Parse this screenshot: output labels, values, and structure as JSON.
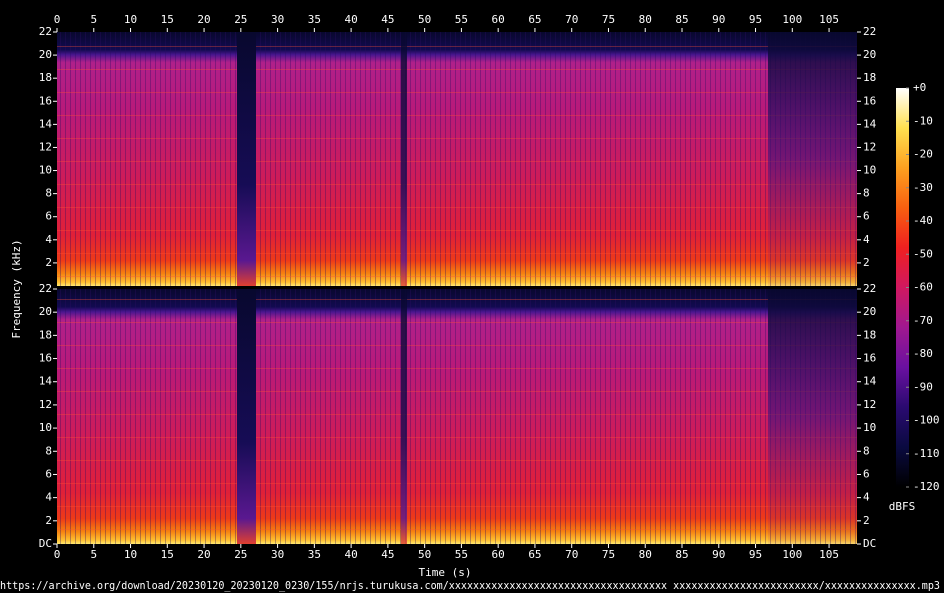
{
  "chart_data": {
    "type": "spectrogram",
    "xlabel": "Time (s)",
    "ylabel": "Frequency (kHz)",
    "xlim": [
      0,
      108.8
    ],
    "xticks": [
      0,
      5,
      10,
      15,
      20,
      25,
      30,
      35,
      40,
      45,
      50,
      55,
      60,
      65,
      70,
      75,
      80,
      85,
      90,
      95,
      100,
      105
    ],
    "panels": [
      {
        "ylim": [
          0,
          22
        ],
        "yticks": [
          2,
          4,
          6,
          8,
          10,
          12,
          14,
          16,
          18,
          20,
          22
        ]
      },
      {
        "ylim": [
          0,
          22
        ],
        "yticks": [
          {
            "value": 0,
            "label": "DC"
          },
          2,
          4,
          6,
          8,
          10,
          12,
          14,
          16,
          18,
          20,
          22
        ]
      }
    ],
    "colorbar": {
      "label": "dBFS",
      "zlim": [
        -120,
        0
      ],
      "zticks": [
        {
          "value": 0,
          "label": "+0"
        },
        -10,
        -20,
        -30,
        -40,
        -50,
        -60,
        -70,
        -80,
        -90,
        -100,
        -110,
        -120
      ],
      "colormap": [
        "#000000",
        "#0a0a40",
        "#2a0a70",
        "#6a10a0",
        "#a01890",
        "#d01860",
        "#f02020",
        "#f86010",
        "#fca020",
        "#ffe050",
        "#ffffff"
      ]
    },
    "source": "https://archive.org/download/20230120_20230120_0230/155/nrjs.turukusa.com/xxxxxxxxxxxxxxxxxxxxxxxxxxxxxxxxxxxx xxxxxxxxxxxxxxxxxxxxxxxx/xxxxxxxxxxxxxxx.mp3"
  }
}
